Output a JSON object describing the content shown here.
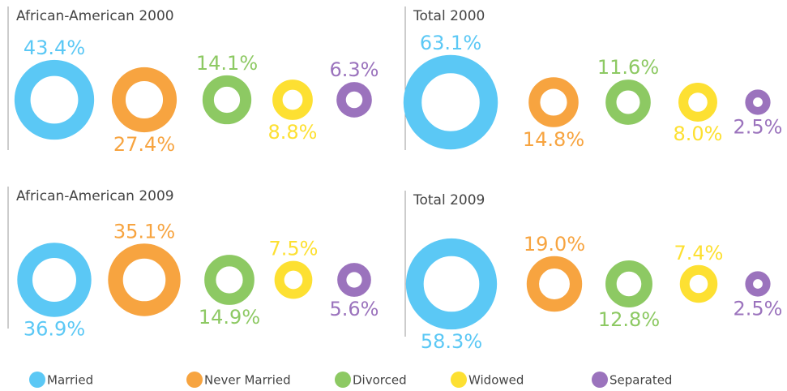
{
  "chart_data": [
    {
      "type": "ring",
      "title": "African-American 2000",
      "categories": [
        "Married",
        "Never Married",
        "Divorced",
        "Widowed",
        "Separated"
      ],
      "values": [
        43.4,
        27.4,
        14.1,
        8.8,
        6.3
      ],
      "value_labels": [
        "43.4%",
        "27.4%",
        "14.1%",
        "8.8%",
        "6.3%"
      ],
      "colors": [
        "#5bc8f5",
        "#f7a440",
        "#8dc963",
        "#fde032",
        "#9b73bd"
      ]
    },
    {
      "type": "ring",
      "title": "Total 2000",
      "categories": [
        "Married",
        "Never Married",
        "Divorced",
        "Widowed",
        "Separated"
      ],
      "values": [
        63.1,
        14.8,
        11.6,
        8.0,
        2.5
      ],
      "value_labels": [
        "63.1%",
        "14.8%",
        "11.6%",
        "8.0%",
        "2.5%"
      ],
      "colors": [
        "#5bc8f5",
        "#f7a440",
        "#8dc963",
        "#fde032",
        "#9b73bd"
      ]
    },
    {
      "type": "ring",
      "title": "African-American 2009",
      "categories": [
        "Married",
        "Never Married",
        "Divorced",
        "Widowed",
        "Separated"
      ],
      "values": [
        36.9,
        35.1,
        14.9,
        7.5,
        5.6
      ],
      "value_labels": [
        "36.9%",
        "35.1%",
        "14.9%",
        "7.5%",
        "5.6%"
      ],
      "colors": [
        "#5bc8f5",
        "#f7a440",
        "#8dc963",
        "#fde032",
        "#9b73bd"
      ]
    },
    {
      "type": "ring",
      "title": "Total 2009",
      "categories": [
        "Married",
        "Never Married",
        "Divorced",
        "Widowed",
        "Separated"
      ],
      "values": [
        58.3,
        19.0,
        12.8,
        7.4,
        2.5
      ],
      "value_labels": [
        "58.3%",
        "19.0%",
        "12.8%",
        "7.4%",
        "2.5%"
      ],
      "colors": [
        "#5bc8f5",
        "#f7a440",
        "#8dc963",
        "#fde032",
        "#9b73bd"
      ]
    }
  ]
}
